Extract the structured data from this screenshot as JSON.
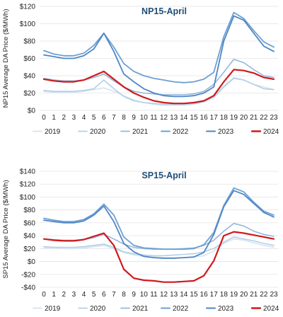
{
  "chart_data": [
    {
      "type": "line",
      "title": "NP15-April",
      "ylabel": "NP15 Average DA Price ($/MWh)",
      "x": [
        0,
        1,
        2,
        3,
        4,
        5,
        6,
        7,
        8,
        9,
        10,
        11,
        12,
        13,
        14,
        15,
        16,
        17,
        18,
        19,
        20,
        21,
        22,
        23
      ],
      "ylim": [
        0,
        120
      ],
      "yticks": [
        0,
        20,
        40,
        60,
        80,
        100,
        120
      ],
      "ytick_labels": [
        "$0",
        "$20",
        "$40",
        "$60",
        "$80",
        "$100",
        "$120"
      ],
      "legend_position": "bottom",
      "grid": true,
      "series": [
        {
          "name": "2019",
          "color": "#d4e3f1",
          "width": 1.6,
          "values": [
            22,
            21,
            21,
            21,
            22,
            24,
            26,
            22,
            17,
            12,
            9,
            7,
            6,
            6,
            6,
            7,
            10,
            17,
            28,
            38,
            35,
            30,
            27,
            24
          ]
        },
        {
          "name": "2020",
          "color": "#b4cfe6",
          "width": 1.6,
          "values": [
            23,
            22,
            22,
            22,
            23,
            25,
            35,
            25,
            16,
            11,
            9,
            8,
            7,
            7,
            7,
            8,
            10,
            15,
            27,
            37,
            35,
            30,
            25,
            24
          ]
        },
        {
          "name": "2021",
          "color": "#92b8dd",
          "width": 1.6,
          "values": [
            37,
            35,
            34,
            34,
            35,
            38,
            42,
            34,
            27,
            22,
            20,
            19,
            18,
            18,
            18,
            19,
            22,
            30,
            44,
            59,
            55,
            47,
            40,
            38
          ]
        },
        {
          "name": "2022",
          "color": "#6f9fd3",
          "width": 1.8,
          "values": [
            69,
            65,
            63,
            63,
            66,
            75,
            89,
            73,
            54,
            45,
            40,
            37,
            35,
            33,
            32,
            33,
            36,
            44,
            85,
            113,
            106,
            92,
            79,
            73
          ]
        },
        {
          "name": "2023",
          "color": "#4f86c6",
          "width": 1.8,
          "values": [
            64,
            62,
            60,
            60,
            63,
            71,
            89,
            68,
            42,
            33,
            25,
            20,
            17,
            16,
            16,
            17,
            20,
            27,
            80,
            109,
            104,
            89,
            74,
            68
          ]
        },
        {
          "name": "2024",
          "color": "#d0191d",
          "width": 2.2,
          "values": [
            36,
            34,
            33,
            33,
            35,
            40,
            45,
            36,
            27,
            20,
            15,
            11,
            9,
            8,
            8,
            9,
            11,
            17,
            33,
            47,
            46,
            43,
            38,
            36
          ]
        }
      ]
    },
    {
      "type": "line",
      "title": "SP15-April",
      "ylabel": "SP15 Average DA Price ($/MWh)",
      "x": [
        0,
        1,
        2,
        3,
        4,
        5,
        6,
        7,
        8,
        9,
        10,
        11,
        12,
        13,
        14,
        15,
        16,
        17,
        18,
        19,
        20,
        21,
        22,
        23
      ],
      "ylim": [
        -40,
        140
      ],
      "yticks": [
        -40,
        -20,
        0,
        20,
        40,
        60,
        80,
        100,
        120,
        140
      ],
      "ytick_labels": [
        "-$40",
        "-$20",
        "$0",
        "$20",
        "$40",
        "$60",
        "$80",
        "$100",
        "$120",
        "$140"
      ],
      "legend_position": "bottom",
      "grid": true,
      "series": [
        {
          "name": "2019",
          "color": "#d4e3f1",
          "width": 1.6,
          "values": [
            21,
            21,
            20,
            20,
            21,
            23,
            25,
            20,
            14,
            10,
            8,
            7,
            6,
            6,
            6,
            7,
            9,
            16,
            28,
            35,
            33,
            29,
            25,
            22
          ]
        },
        {
          "name": "2020",
          "color": "#b4cfe6",
          "width": 1.6,
          "values": [
            23,
            22,
            22,
            22,
            23,
            25,
            27,
            22,
            15,
            12,
            10,
            9,
            9,
            10,
            11,
            12,
            15,
            20,
            30,
            38,
            35,
            32,
            28,
            25
          ]
        },
        {
          "name": "2021",
          "color": "#92b8dd",
          "width": 1.6,
          "values": [
            35,
            34,
            33,
            33,
            34,
            37,
            42,
            35,
            27,
            22,
            20,
            19,
            19,
            19,
            20,
            21,
            25,
            33,
            47,
            59,
            55,
            47,
            42,
            39
          ]
        },
        {
          "name": "2022",
          "color": "#6f9fd3",
          "width": 1.8,
          "values": [
            67,
            64,
            62,
            62,
            65,
            74,
            89,
            72,
            38,
            25,
            21,
            20,
            19,
            19,
            19,
            20,
            26,
            45,
            87,
            114,
            108,
            92,
            78,
            72
          ]
        },
        {
          "name": "2023",
          "color": "#4f86c6",
          "width": 1.8,
          "values": [
            64,
            62,
            60,
            60,
            63,
            72,
            86,
            62,
            28,
            15,
            8,
            6,
            5,
            5,
            6,
            7,
            14,
            42,
            85,
            110,
            104,
            90,
            76,
            69
          ]
        },
        {
          "name": "2024",
          "color": "#d0191d",
          "width": 2.2,
          "values": [
            35,
            33,
            32,
            32,
            34,
            39,
            44,
            25,
            -12,
            -26,
            -29,
            -30,
            -32,
            -32,
            -31,
            -30,
            -22,
            1,
            40,
            46,
            44,
            41,
            38,
            35
          ]
        }
      ]
    }
  ]
}
